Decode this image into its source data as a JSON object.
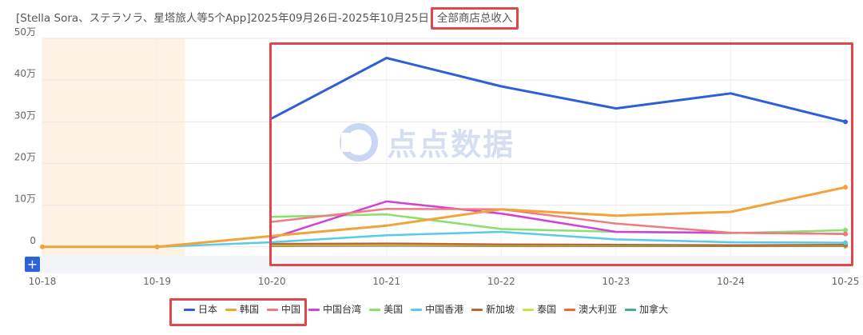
{
  "header": {
    "title_prefix": "[Stella Sora、ステラソラ、星塔旅人等5个App]2025年09月26日-2025年10月25日",
    "title_highlight": "全部商店总收入"
  },
  "watermark": {
    "text": "点点数据"
  },
  "controls": {
    "expand_symbol": "+"
  },
  "colors": {
    "highlight": "#e0474c",
    "shaded_band": "#fdf3e5",
    "grid": "#e8e8e8",
    "bottom_band": "#f2f4f8"
  },
  "chart_data": {
    "type": "line",
    "categories": [
      "10-18",
      "10-19",
      "10-20",
      "10-21",
      "10-22",
      "10-23",
      "10-24",
      "10-25"
    ],
    "y_tick_labels": [
      "0",
      "10万",
      "20万",
      "30万",
      "40万",
      "50万"
    ],
    "y_ticks": [
      0,
      100000,
      200000,
      300000,
      400000,
      500000
    ],
    "ylim": [
      -10000,
      500000
    ],
    "grid": true,
    "legend_position": "bottom",
    "shaded_x_range": [
      "10-18",
      "10-19"
    ],
    "series": [
      {
        "name": "日本",
        "color": "#2f5fd6",
        "values": [
          null,
          null,
          308000,
          453000,
          385000,
          332000,
          368000,
          300000
        ]
      },
      {
        "name": "韩国",
        "color": "#f1a43a",
        "values": [
          0,
          0,
          26000,
          51000,
          90000,
          75000,
          84000,
          143000
        ]
      },
      {
        "name": "中国",
        "color": "#ee7d82",
        "values": [
          null,
          null,
          60000,
          91000,
          90000,
          56000,
          34000,
          31000
        ]
      },
      {
        "name": "中国台湾",
        "color": "#d43fd6",
        "values": [
          null,
          null,
          21000,
          109000,
          80000,
          36000,
          34000,
          31000
        ]
      },
      {
        "name": "美国",
        "color": "#8ae06f",
        "values": [
          null,
          null,
          72000,
          78000,
          43000,
          36000,
          33000,
          40000
        ]
      },
      {
        "name": "中国香港",
        "color": "#59cbe8",
        "values": [
          null,
          0,
          11000,
          28000,
          36000,
          18000,
          11000,
          10000
        ]
      },
      {
        "name": "新加坡",
        "color": "#b06b3b",
        "values": [
          null,
          null,
          7000,
          8000,
          6000,
          5000,
          4000,
          5000
        ]
      },
      {
        "name": "泰国",
        "color": "#c8e04a",
        "values": [
          null,
          null,
          5000,
          6000,
          5000,
          4000,
          4000,
          4000
        ]
      },
      {
        "name": "澳大利亚",
        "color": "#f0692b",
        "values": [
          null,
          null,
          3000,
          4000,
          3000,
          3000,
          3000,
          3000
        ]
      },
      {
        "name": "加拿大",
        "color": "#3fb08d",
        "values": [
          null,
          null,
          2000,
          3000,
          2000,
          2000,
          2000,
          2000
        ]
      }
    ]
  }
}
